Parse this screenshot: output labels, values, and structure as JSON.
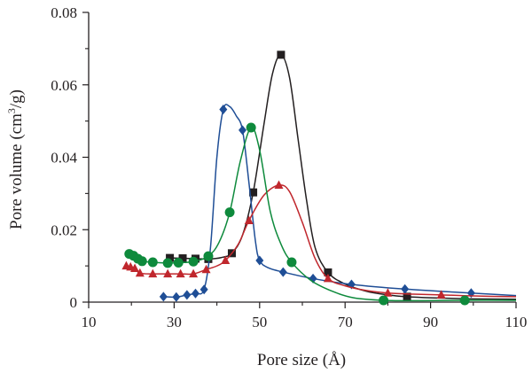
{
  "chart_data": {
    "type": "scatter",
    "title": "",
    "xlabel": "Pore size (Å)",
    "ylabel_main": "Pore volume (cm",
    "ylabel_sup": "3",
    "ylabel_tail": "/g)",
    "xlim": [
      10,
      110
    ],
    "ylim": [
      0,
      0.08
    ],
    "x_ticks": [
      "10",
      "30",
      "50",
      "70",
      "90",
      "110"
    ],
    "y_ticks": [
      "0",
      "0.02",
      "0.04",
      "0.06",
      "0.08"
    ],
    "grid": false,
    "legend": "none",
    "series": [
      {
        "marker": "square",
        "color": "#231f20",
        "points": [
          [
            29,
            0.0122
          ],
          [
            32,
            0.0121
          ],
          [
            35,
            0.012
          ],
          [
            38,
            0.0119
          ],
          [
            43.5,
            0.0135
          ],
          [
            48.5,
            0.0303
          ],
          [
            55,
            0.0683
          ],
          [
            66,
            0.0082
          ],
          [
            84.5,
            0.0015
          ]
        ],
        "curve": [
          [
            29,
            0.0122
          ],
          [
            32,
            0.0121
          ],
          [
            35,
            0.012
          ],
          [
            38,
            0.0119
          ],
          [
            41,
            0.0123
          ],
          [
            43.5,
            0.0135
          ],
          [
            46,
            0.0185
          ],
          [
            48.5,
            0.0303
          ],
          [
            51,
            0.049
          ],
          [
            53,
            0.063
          ],
          [
            55,
            0.0683
          ],
          [
            57,
            0.062
          ],
          [
            59,
            0.045
          ],
          [
            61,
            0.028
          ],
          [
            63,
            0.015
          ],
          [
            66,
            0.0082
          ],
          [
            70,
            0.005
          ],
          [
            75,
            0.003
          ],
          [
            80,
            0.002
          ],
          [
            84.5,
            0.0015
          ],
          [
            90,
            0.0012
          ],
          [
            100,
            0.0009
          ],
          [
            110,
            0.0008
          ]
        ]
      },
      {
        "marker": "diamond",
        "color": "#1f4e96",
        "points": [
          [
            27.5,
            0.0015
          ],
          [
            30.5,
            0.0014
          ],
          [
            33,
            0.002
          ],
          [
            35,
            0.0024
          ],
          [
            37,
            0.0035
          ],
          [
            41.5,
            0.0532
          ],
          [
            46,
            0.0475
          ],
          [
            50,
            0.0115
          ],
          [
            55.5,
            0.0083
          ],
          [
            62.5,
            0.0065
          ],
          [
            71.5,
            0.0049
          ],
          [
            84,
            0.0036
          ],
          [
            99.5,
            0.0025
          ]
        ],
        "curve": [
          [
            27.5,
            0.0015
          ],
          [
            30.5,
            0.0014
          ],
          [
            33,
            0.002
          ],
          [
            35,
            0.0024
          ],
          [
            37,
            0.0035
          ],
          [
            38.5,
            0.015
          ],
          [
            40,
            0.04
          ],
          [
            41.5,
            0.0532
          ],
          [
            43,
            0.054
          ],
          [
            44.5,
            0.0515
          ],
          [
            46,
            0.0475
          ],
          [
            47.5,
            0.033
          ],
          [
            49,
            0.017
          ],
          [
            50,
            0.0115
          ],
          [
            52,
            0.0095
          ],
          [
            55.5,
            0.0083
          ],
          [
            62.5,
            0.0065
          ],
          [
            71.5,
            0.0049
          ],
          [
            84,
            0.0036
          ],
          [
            99.5,
            0.0025
          ],
          [
            110,
            0.0018
          ]
        ]
      },
      {
        "marker": "triangle",
        "color": "#c0272d",
        "points": [
          [
            18.8,
            0.01
          ],
          [
            19.8,
            0.0097
          ],
          [
            20.8,
            0.0093
          ],
          [
            22,
            0.008
          ],
          [
            25,
            0.0078
          ],
          [
            28.5,
            0.0078
          ],
          [
            31.5,
            0.0078
          ],
          [
            34.5,
            0.0078
          ],
          [
            37.5,
            0.009
          ],
          [
            42,
            0.0115
          ],
          [
            47.5,
            0.0225
          ],
          [
            54.5,
            0.0323
          ],
          [
            66,
            0.0065
          ],
          [
            80,
            0.0025
          ],
          [
            92.5,
            0.002
          ]
        ],
        "curve": [
          [
            18.8,
            0.01
          ],
          [
            19.8,
            0.0097
          ],
          [
            20.8,
            0.0093
          ],
          [
            22,
            0.008
          ],
          [
            25,
            0.0078
          ],
          [
            28.5,
            0.0078
          ],
          [
            31.5,
            0.0078
          ],
          [
            34.5,
            0.0078
          ],
          [
            37.5,
            0.009
          ],
          [
            40,
            0.01
          ],
          [
            42,
            0.0115
          ],
          [
            45,
            0.016
          ],
          [
            47.5,
            0.0225
          ],
          [
            51,
            0.0295
          ],
          [
            54.5,
            0.0323
          ],
          [
            57,
            0.0305
          ],
          [
            60,
            0.022
          ],
          [
            63,
            0.012
          ],
          [
            66,
            0.0065
          ],
          [
            70,
            0.0045
          ],
          [
            75,
            0.0032
          ],
          [
            80,
            0.0025
          ],
          [
            86,
            0.0022
          ],
          [
            92.5,
            0.002
          ],
          [
            100,
            0.0017
          ],
          [
            110,
            0.0015
          ]
        ]
      },
      {
        "marker": "circle",
        "color": "#0e8a3c",
        "points": [
          [
            19.5,
            0.0133
          ],
          [
            20.5,
            0.0128
          ],
          [
            21.5,
            0.012
          ],
          [
            22.5,
            0.0113
          ],
          [
            25,
            0.011
          ],
          [
            28.5,
            0.0108
          ],
          [
            31,
            0.0109
          ],
          [
            34.5,
            0.0112
          ],
          [
            38,
            0.0127
          ],
          [
            43,
            0.0248
          ],
          [
            48,
            0.0482
          ],
          [
            57.5,
            0.011
          ],
          [
            79,
            0.0005
          ],
          [
            98,
            0.0005
          ]
        ],
        "curve": [
          [
            19.5,
            0.0133
          ],
          [
            20.5,
            0.0128
          ],
          [
            21.5,
            0.012
          ],
          [
            22.5,
            0.0113
          ],
          [
            25,
            0.011
          ],
          [
            28.5,
            0.0108
          ],
          [
            31,
            0.0109
          ],
          [
            34.5,
            0.0112
          ],
          [
            38,
            0.0127
          ],
          [
            40.5,
            0.0165
          ],
          [
            43,
            0.0248
          ],
          [
            45.5,
            0.039
          ],
          [
            48,
            0.0482
          ],
          [
            50,
            0.042
          ],
          [
            52.5,
            0.025
          ],
          [
            55,
            0.016
          ],
          [
            57.5,
            0.011
          ],
          [
            62,
            0.006
          ],
          [
            67,
            0.003
          ],
          [
            72,
            0.0012
          ],
          [
            79,
            0.0005
          ],
          [
            88,
            0.0004
          ],
          [
            98,
            0.0005
          ],
          [
            110,
            0.0005
          ]
        ]
      }
    ]
  }
}
